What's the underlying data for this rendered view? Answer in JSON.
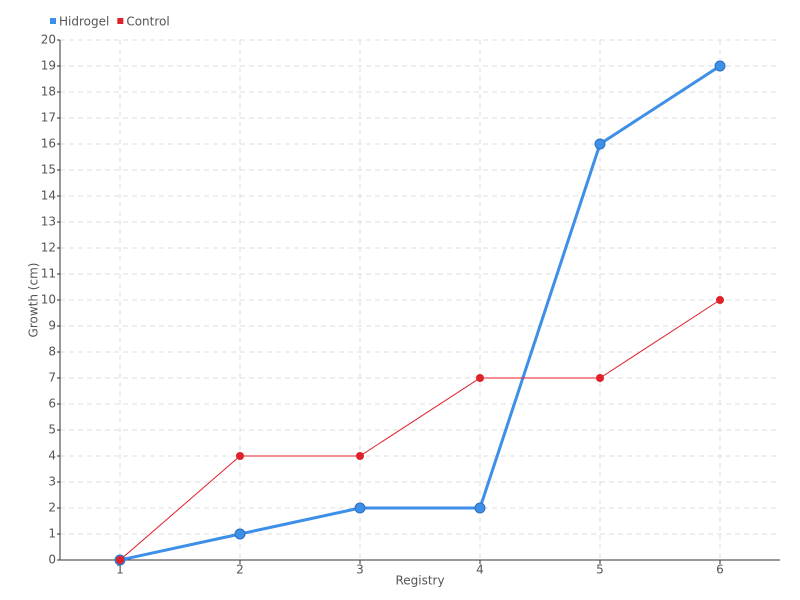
{
  "chart_data": {
    "type": "line",
    "x_label": "Registry",
    "y_label": "Growth (cm)",
    "categories": [
      "1",
      "2",
      "3",
      "4",
      "5",
      "6"
    ],
    "series": [
      {
        "name": "Hidrogel",
        "color": "#3d8fe8",
        "values": [
          0,
          1,
          2,
          2,
          16,
          19
        ]
      },
      {
        "name": "Control",
        "color": "#e0202a",
        "values": [
          0,
          4,
          4,
          7,
          7,
          10
        ]
      }
    ],
    "ylim": [
      0,
      20
    ],
    "yticks": [
      0,
      1,
      2,
      3,
      4,
      5,
      6,
      7,
      8,
      9,
      10,
      11,
      12,
      13,
      14,
      15,
      16,
      17,
      18,
      19,
      20
    ],
    "grid": true,
    "legend": "top-left"
  }
}
